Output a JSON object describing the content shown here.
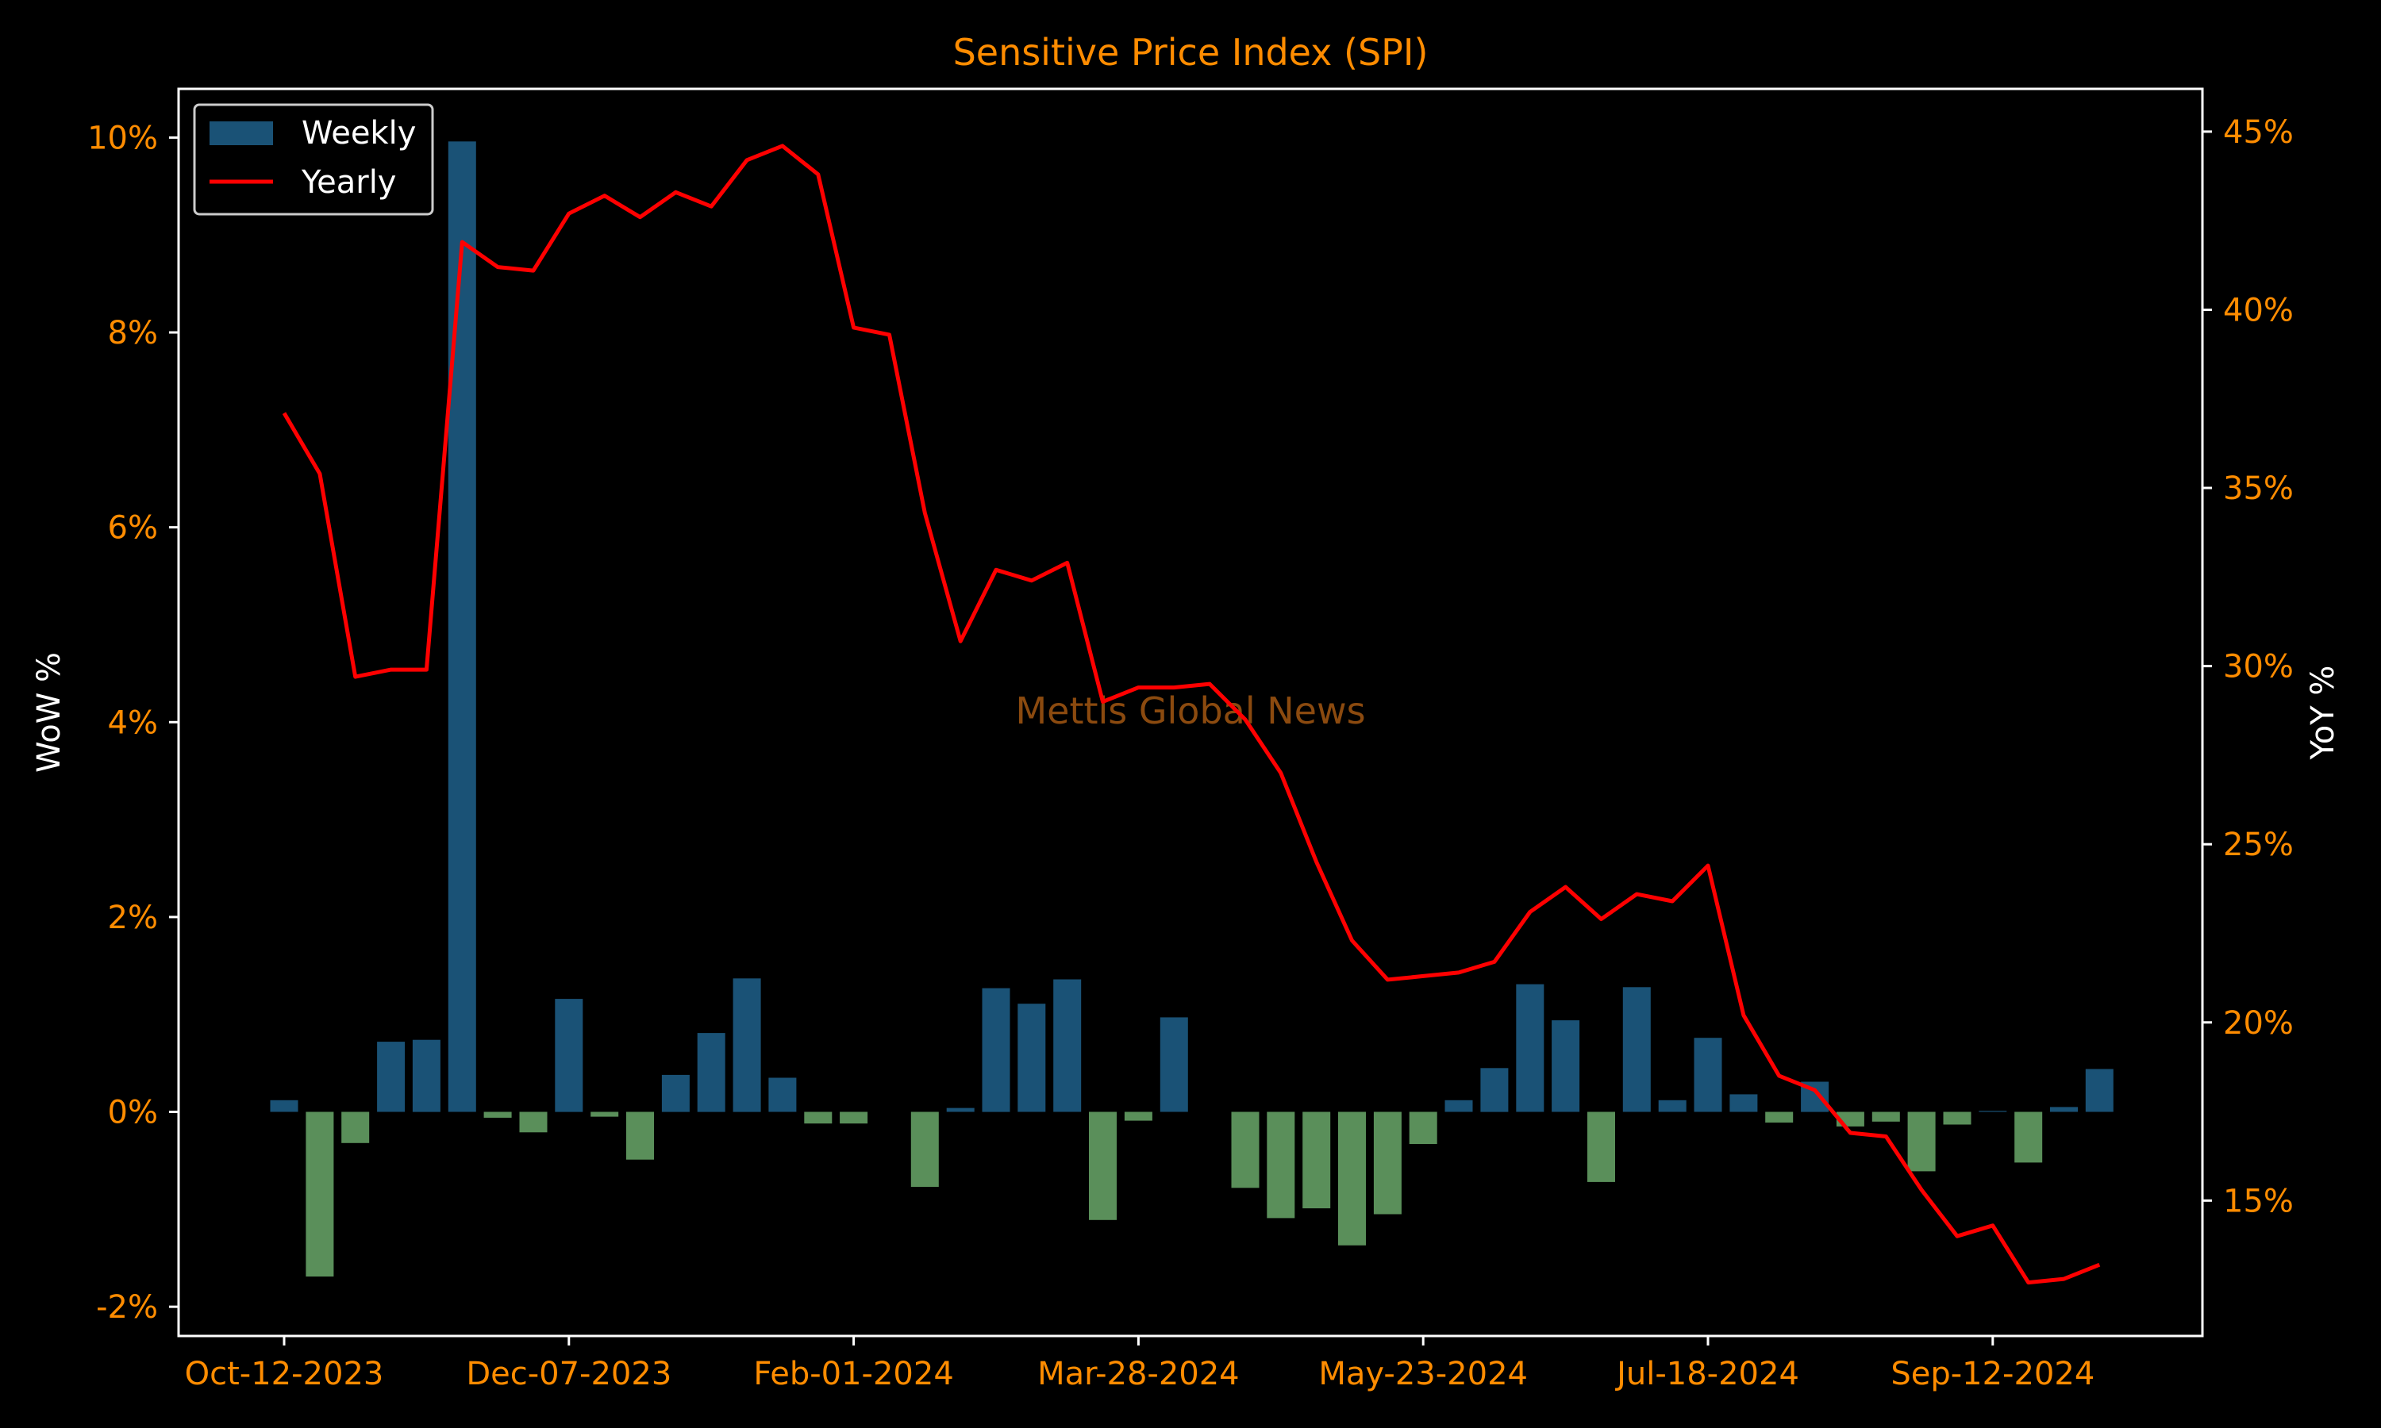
{
  "chart_data": {
    "type": "bar",
    "title": "Sensitive Price Index (SPI)",
    "watermark": "Mettis Global News",
    "xlabel": "",
    "ylabel": "WoW %",
    "ylabel_right": "YoY %",
    "ylim": [
      -2.3,
      10.5
    ],
    "ylim_right": [
      11.2,
      46.2
    ],
    "yticks": [
      {
        "value": -2,
        "label": "-2%"
      },
      {
        "value": 0,
        "label": "0%"
      },
      {
        "value": 2,
        "label": "2%"
      },
      {
        "value": 4,
        "label": "4%"
      },
      {
        "value": 6,
        "label": "6%"
      },
      {
        "value": 8,
        "label": "8%"
      },
      {
        "value": 10,
        "label": "10%"
      }
    ],
    "yticks_right": [
      {
        "value": 15,
        "label": "15%"
      },
      {
        "value": 20,
        "label": "20%"
      },
      {
        "value": 25,
        "label": "25%"
      },
      {
        "value": 30,
        "label": "30%"
      },
      {
        "value": 35,
        "label": "35%"
      },
      {
        "value": 40,
        "label": "40%"
      },
      {
        "value": 45,
        "label": "45%"
      }
    ],
    "xticks": [
      {
        "week": 0,
        "label": "Oct-12-2023"
      },
      {
        "week": 8,
        "label": "Dec-07-2023"
      },
      {
        "week": 16,
        "label": "Feb-01-2024"
      },
      {
        "week": 24,
        "label": "Mar-28-2024"
      },
      {
        "week": 32,
        "label": "May-23-2024"
      },
      {
        "week": 40,
        "label": "Jul-18-2024"
      },
      {
        "week": 48,
        "label": "Sep-12-2024"
      }
    ],
    "x": [
      "Oct-12-2023",
      "Oct-19-2023",
      "Oct-26-2023",
      "Nov-02-2023",
      "Nov-09-2023",
      "Nov-16-2023",
      "Nov-23-2023",
      "Nov-30-2023",
      "Dec-07-2023",
      "Dec-14-2023",
      "Dec-21-2023",
      "Dec-28-2023",
      "Jan-04-2024",
      "Jan-11-2024",
      "Jan-18-2024",
      "Jan-25-2024",
      "Feb-01-2024",
      "Feb-08-2024",
      "Feb-15-2024",
      "Feb-22-2024",
      "Feb-29-2024",
      "Mar-07-2024",
      "Mar-14-2024",
      "Mar-21-2024",
      "Mar-28-2024",
      "Apr-04-2024",
      "Apr-11-2024",
      "Apr-18-2024",
      "Apr-25-2024",
      "May-02-2024",
      "May-09-2024",
      "May-16-2024",
      "May-23-2024",
      "May-30-2024",
      "Jun-06-2024",
      "Jun-13-2024",
      "Jun-20-2024",
      "Jun-27-2024",
      "Jul-04-2024",
      "Jul-11-2024",
      "Jul-18-2024",
      "Jul-25-2024",
      "Aug-01-2024",
      "Aug-08-2024",
      "Aug-15-2024",
      "Aug-22-2024",
      "Aug-29-2024",
      "Sep-05-2024",
      "Sep-12-2024",
      "Sep-19-2024",
      "Sep-26-2024",
      "Oct-03-2024"
    ],
    "series": [
      {
        "name": "Weekly",
        "type": "bar",
        "axis": "left",
        "color_positive": "#1a5276",
        "color_negative": "#5a8f5a",
        "values": [
          0.12,
          -1.69,
          -0.32,
          0.72,
          0.74,
          9.96,
          -0.06,
          -0.21,
          1.16,
          -0.05,
          -0.49,
          0.38,
          0.81,
          1.37,
          0.35,
          -0.12,
          -0.12,
          0.0,
          -0.77,
          0.04,
          1.27,
          1.11,
          1.36,
          -1.11,
          -0.09,
          0.97,
          0.0,
          -0.78,
          -1.09,
          -0.99,
          -1.37,
          -1.05,
          -0.33,
          0.12,
          0.45,
          1.31,
          0.94,
          -0.72,
          1.28,
          0.12,
          0.76,
          0.18,
          -0.11,
          0.31,
          -0.15,
          -0.1,
          -0.61,
          -0.13,
          0.01,
          -0.52,
          0.05,
          0.44
        ]
      },
      {
        "name": "Yearly",
        "type": "line",
        "axis": "right",
        "color": "#ff0000",
        "values": [
          37.1,
          35.4,
          29.7,
          29.9,
          29.9,
          41.9,
          41.2,
          41.1,
          42.7,
          43.2,
          42.6,
          43.3,
          42.9,
          44.2,
          44.6,
          43.8,
          39.5,
          39.3,
          34.3,
          30.7,
          32.7,
          32.4,
          32.9,
          29.0,
          29.4,
          29.4,
          29.5,
          28.5,
          27.0,
          24.5,
          22.3,
          21.2,
          21.3,
          21.4,
          21.7,
          23.1,
          23.8,
          22.9,
          23.6,
          23.4,
          24.4,
          20.2,
          18.5,
          18.1,
          16.9,
          16.8,
          15.3,
          14.0,
          14.3,
          12.7,
          12.8,
          13.2
        ]
      }
    ],
    "legend_position": "top-left",
    "grid": false,
    "colors": {
      "background": "#000000",
      "tick_labels": "#ff8c00",
      "text": "#ffffff",
      "title": "#ff8c00",
      "watermark": "#8b4a0f",
      "axes": "#ffffff"
    }
  }
}
